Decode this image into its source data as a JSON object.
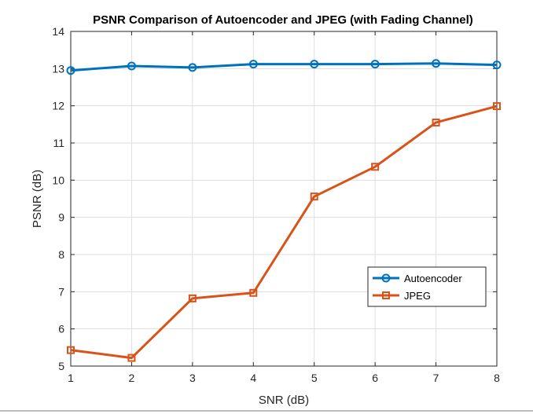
{
  "chart_data": {
    "type": "line",
    "title": "PSNR Comparison of Autoencoder and JPEG (with Fading Channel)",
    "xlabel": "SNR (dB)",
    "ylabel": "PSNR (dB)",
    "x": [
      1,
      2,
      3,
      4,
      5,
      6,
      7,
      8
    ],
    "xlim": [
      1,
      8
    ],
    "ylim": [
      5,
      14
    ],
    "xticks": [
      1,
      2,
      3,
      4,
      5,
      6,
      7,
      8
    ],
    "yticks": [
      5,
      6,
      7,
      8,
      9,
      10,
      11,
      12,
      13,
      14
    ],
    "grid": true,
    "legend_position": "right",
    "series": [
      {
        "name": "Autoencoder",
        "color": "#0072BD",
        "marker": "circle",
        "values": [
          12.95,
          13.07,
          13.03,
          13.12,
          13.12,
          13.12,
          13.14,
          13.1
        ]
      },
      {
        "name": "JPEG",
        "color": "#D95319",
        "marker": "square",
        "values": [
          5.43,
          5.22,
          6.82,
          6.97,
          9.56,
          10.36,
          11.55,
          11.99
        ]
      }
    ]
  }
}
